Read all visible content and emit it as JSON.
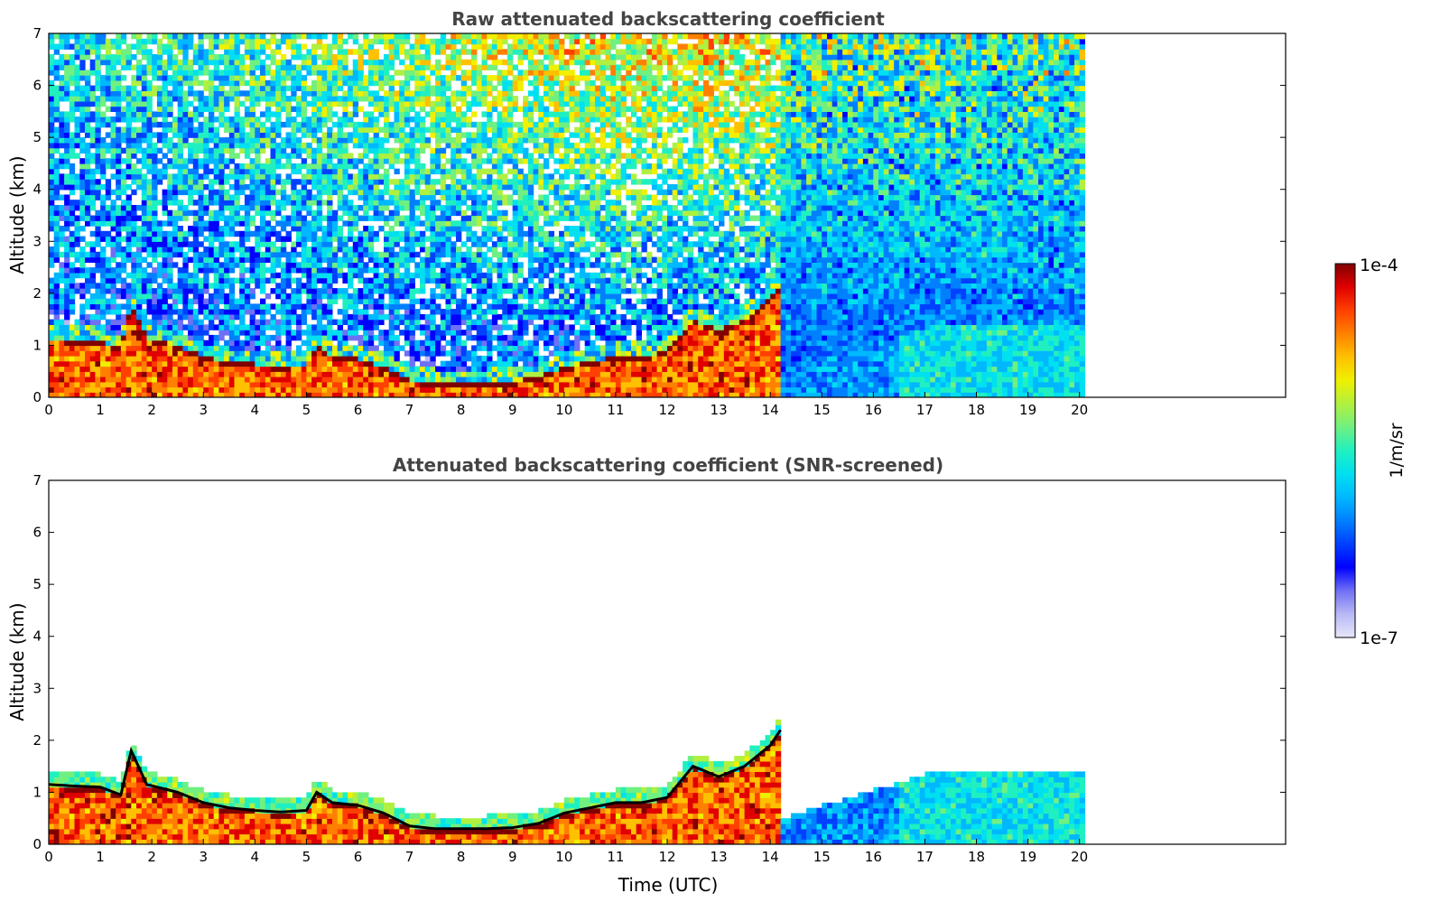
{
  "colors": {
    "colormap": [
      "#e6e6fa",
      "#b8b8f5",
      "#7070f5",
      "#0000ff",
      "#0040ff",
      "#0080ff",
      "#00b8ff",
      "#00e0f0",
      "#20f0c0",
      "#70f080",
      "#b0f040",
      "#f0f000",
      "#ffc000",
      "#ff8000",
      "#ff4000",
      "#e00000",
      "#800000"
    ],
    "cloud_base": "#000000"
  },
  "chart_data": [
    {
      "type": "heatmap",
      "title": "Raw attenuated backscattering coefficient",
      "xlabel": "",
      "ylabel": "Altitude (km)",
      "xlim": [
        0,
        24
      ],
      "ylim": [
        0,
        7
      ],
      "xticks": [
        "0",
        "1",
        "2",
        "3",
        "4",
        "5",
        "6",
        "7",
        "8",
        "9",
        "10",
        "11",
        "12",
        "13",
        "14",
        "15",
        "16",
        "17",
        "18",
        "19",
        "20"
      ],
      "yticks": [
        "0",
        "1",
        "2",
        "3",
        "4",
        "5",
        "6",
        "7"
      ],
      "data_end_time": 20.1,
      "screened": false,
      "boundary_layer_top_km": [
        [
          0,
          1.15
        ],
        [
          0.5,
          1.12
        ],
        [
          1,
          1.1
        ],
        [
          1.4,
          0.95
        ],
        [
          1.6,
          1.8
        ],
        [
          1.9,
          1.15
        ],
        [
          2.5,
          1.0
        ],
        [
          3,
          0.8
        ],
        [
          3.5,
          0.7
        ],
        [
          4,
          0.65
        ],
        [
          4.5,
          0.62
        ],
        [
          5,
          0.65
        ],
        [
          5.2,
          1.0
        ],
        [
          5.5,
          0.8
        ],
        [
          6,
          0.75
        ],
        [
          6.5,
          0.6
        ],
        [
          7,
          0.35
        ],
        [
          7.5,
          0.3
        ],
        [
          8,
          0.3
        ],
        [
          8.5,
          0.3
        ],
        [
          9,
          0.32
        ],
        [
          9.5,
          0.4
        ],
        [
          10,
          0.6
        ],
        [
          10.5,
          0.7
        ],
        [
          11,
          0.8
        ],
        [
          11.5,
          0.8
        ],
        [
          12,
          0.9
        ],
        [
          12.5,
          1.5
        ],
        [
          13,
          1.3
        ],
        [
          13.5,
          1.5
        ],
        [
          14,
          1.9
        ],
        [
          14.2,
          2.2
        ]
      ],
      "colorbar": {
        "label": "1/m/sr",
        "max_label": "1e-4",
        "min_label": "1e-7",
        "log": true
      }
    },
    {
      "type": "heatmap",
      "title": "Attenuated backscattering coefficient (SNR-screened)",
      "xlabel": "Time (UTC)",
      "ylabel": "Altitude (km)",
      "xlim": [
        0,
        24
      ],
      "ylim": [
        0,
        7
      ],
      "xticks": [
        "0",
        "1",
        "2",
        "3",
        "4",
        "5",
        "6",
        "7",
        "8",
        "9",
        "10",
        "11",
        "12",
        "13",
        "14",
        "15",
        "16",
        "17",
        "18",
        "19",
        "20"
      ],
      "yticks": [
        "0",
        "1",
        "2",
        "3",
        "4",
        "5",
        "6",
        "7"
      ],
      "data_end_time": 20.1,
      "screened": true
    }
  ]
}
